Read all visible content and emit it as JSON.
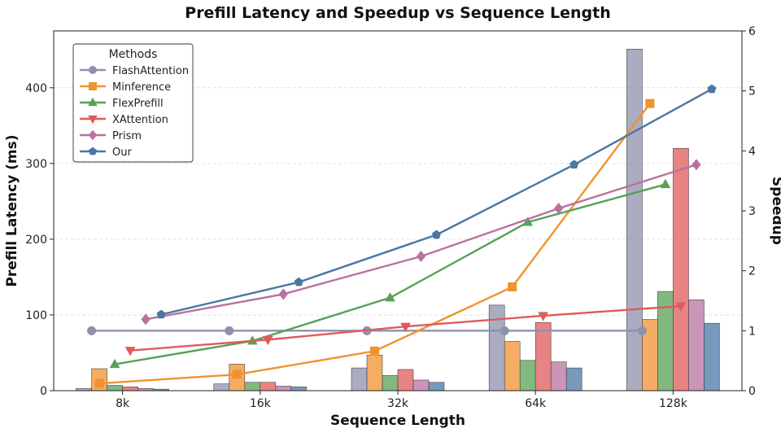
{
  "chart_data": {
    "type": "bar+line",
    "title": "Prefill Latency and Speedup vs Sequence Length",
    "xlabel": "Sequence Length",
    "ylabel_left": "Prefill Latency (ms)",
    "ylabel_right": "Speedup",
    "categories": [
      "8k",
      "16k",
      "32k",
      "64k",
      "128k"
    ],
    "ylim_left": [
      0,
      475
    ],
    "yticks_left": [
      0,
      100,
      200,
      300,
      400
    ],
    "ylim_right": [
      0,
      6
    ],
    "yticks_right": [
      0,
      1,
      2,
      3,
      4,
      5,
      6
    ],
    "grid": "horizontal dashed",
    "legend": {
      "title": "Methods",
      "placement": "top-left"
    },
    "series": [
      {
        "name": "FlashAttention",
        "color": "#8e91ad",
        "marker": "circle",
        "latency": [
          3,
          9,
          30,
          113,
          451
        ],
        "speedup": [
          1,
          1,
          1,
          1,
          1
        ]
      },
      {
        "name": "Minference",
        "color": "#f0922e",
        "marker": "square",
        "latency": [
          29,
          35,
          47,
          65,
          94
        ],
        "speedup": [
          0.12,
          0.27,
          0.66,
          1.73,
          4.79
        ]
      },
      {
        "name": "FlexPrefill",
        "color": "#57a154",
        "marker": "triangle-up",
        "latency": [
          7,
          11,
          20,
          40,
          131
        ],
        "speedup": [
          0.44,
          0.83,
          1.55,
          2.81,
          3.44
        ]
      },
      {
        "name": "XAttention",
        "color": "#e05a5b",
        "marker": "triangle-down",
        "latency": [
          5,
          11,
          28,
          90,
          320
        ],
        "speedup": [
          0.67,
          0.85,
          1.07,
          1.25,
          1.41
        ]
      },
      {
        "name": "Prism",
        "color": "#b9729f",
        "marker": "diamond",
        "latency": [
          3,
          6,
          14,
          38,
          120
        ],
        "speedup": [
          1.19,
          1.61,
          2.24,
          3.04,
          3.77
        ]
      },
      {
        "name": "Our",
        "color": "#4a77a4",
        "marker": "pentagon",
        "latency": [
          2,
          5,
          11,
          30,
          89
        ],
        "speedup": [
          1.27,
          1.81,
          2.6,
          3.77,
          5.03
        ]
      }
    ]
  }
}
